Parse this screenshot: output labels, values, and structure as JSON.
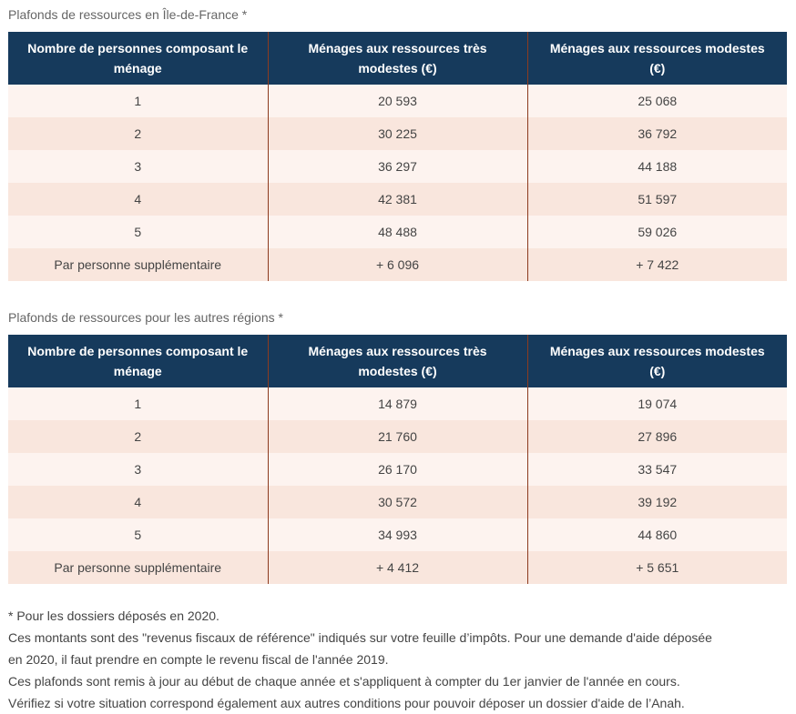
{
  "tables": [
    {
      "caption": "Plafonds de ressources en Île-de-France *",
      "header": [
        "Nombre de personnes composant le ménage",
        "Ménages aux ressources très modestes (€)",
        "Ménages aux ressources modestes (€)"
      ],
      "rows": [
        [
          "1",
          "20 593",
          "25 068"
        ],
        [
          "2",
          "30 225",
          "36 792"
        ],
        [
          "3",
          "36 297",
          "44 188"
        ],
        [
          "4",
          "42 381",
          "51 597"
        ],
        [
          "5",
          "48 488",
          "59 026"
        ],
        [
          "Par personne supplémentaire",
          "+ 6 096",
          "+ 7 422"
        ]
      ]
    },
    {
      "caption": "Plafonds de ressources pour les autres régions *",
      "header": [
        "Nombre de personnes composant le ménage",
        "Ménages aux ressources très modestes (€)",
        "Ménages aux ressources modestes (€)"
      ],
      "rows": [
        [
          "1",
          "14 879",
          "19 074"
        ],
        [
          "2",
          "21 760",
          "27 896"
        ],
        [
          "3",
          "26 170",
          "33 547"
        ],
        [
          "4",
          "30 572",
          "39 192"
        ],
        [
          "5",
          "34 993",
          "44 860"
        ],
        [
          "Par personne supplémentaire",
          "+ 4 412",
          "+ 5 651"
        ]
      ]
    }
  ],
  "notes": [
    "* Pour les dossiers déposés en 2020.",
    "Ces montants sont des \"revenus fiscaux de référence\" indiqués sur votre feuille d’impôts. Pour une demande d'aide déposée",
    "en 2020, il faut prendre en compte le revenu fiscal de l'année 2019.",
    "Ces plafonds sont remis à jour au début de chaque année et s'appliquent à compter du 1er janvier de l'année en cours.",
    "Vérifiez si votre situation correspond également aux autres conditions pour pouvoir déposer un dossier d'aide de l’Anah."
  ]
}
